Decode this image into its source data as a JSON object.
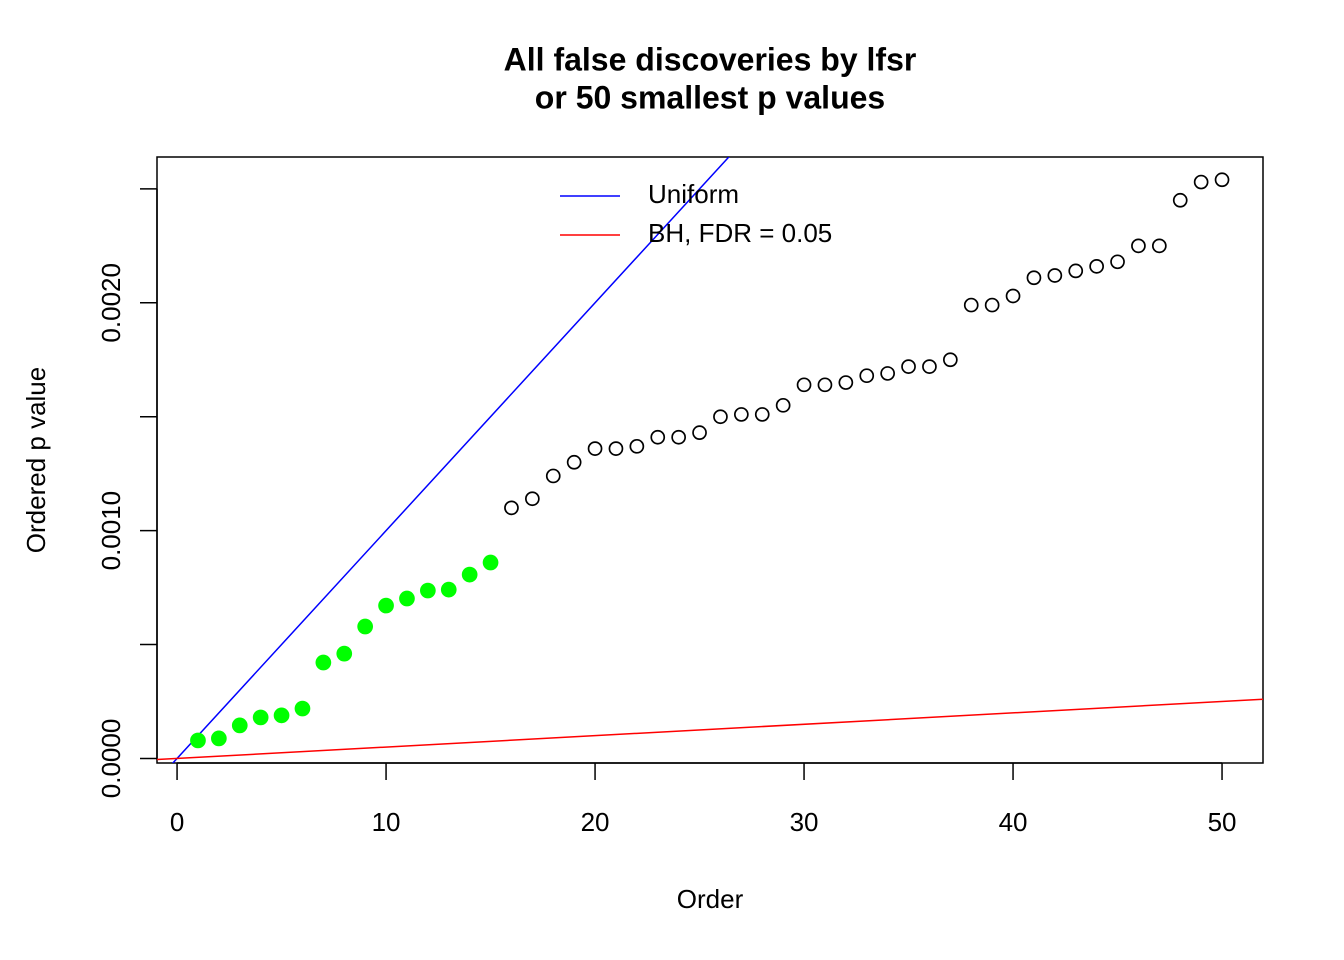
{
  "chart_data": {
    "type": "scatter",
    "title": "All false discoveries by lfsr",
    "subtitle": "or 50 smallest p values",
    "xlabel": "Order",
    "ylabel": "Ordered p value",
    "xlim": [
      -0.96,
      51.96
    ],
    "ylim": [
      -2e-05,
      0.00264
    ],
    "xticks": [
      0,
      10,
      20,
      30,
      40,
      50
    ],
    "yticks": [
      {
        "value": 0,
        "label": "0.0000"
      },
      {
        "value": 0.001,
        "label": "0.0010"
      },
      {
        "value": 0.002,
        "label": "0.0020"
      }
    ],
    "yminor_ticks": [
      0.0005,
      0.0015,
      0.0025
    ],
    "series": [
      {
        "color": "#00ff00",
        "filled": true,
        "x": [
          1,
          2,
          3,
          4,
          5,
          6,
          7,
          8,
          9,
          10,
          11,
          12,
          13,
          14,
          15
        ],
        "values": [
          7.9e-05,
          8.8e-05,
          0.000145,
          0.00018,
          0.000189,
          0.000219,
          0.000421,
          0.00046,
          0.000579,
          0.000671,
          0.000702,
          0.000737,
          0.000741,
          0.000807,
          0.00086
        ]
      },
      {
        "color": "#000000",
        "filled": false,
        "x": [
          16,
          17,
          18,
          19,
          20,
          21,
          22,
          23,
          24,
          25,
          26,
          27,
          28,
          29,
          30,
          31,
          32,
          33,
          34,
          35,
          36,
          37,
          38,
          39,
          40,
          41,
          42,
          43,
          44,
          45,
          46,
          47,
          48,
          49,
          50
        ],
        "values": [
          0.0011,
          0.00114,
          0.00124,
          0.0013,
          0.00136,
          0.00136,
          0.00137,
          0.00141,
          0.00141,
          0.00143,
          0.0015,
          0.00151,
          0.00151,
          0.00155,
          0.00164,
          0.00164,
          0.00165,
          0.00168,
          0.00169,
          0.00172,
          0.00172,
          0.00175,
          0.00199,
          0.00199,
          0.00203,
          0.00211,
          0.00212,
          0.00214,
          0.00216,
          0.00218,
          0.00225,
          0.00225,
          0.00245,
          0.00253,
          0.00254
        ]
      }
    ],
    "lines": [
      {
        "name": "Uniform",
        "color": "#0000ff",
        "slope": 0.0001,
        "intercept": 0
      },
      {
        "name": "BH, FDR = 0.05",
        "color": "#ff0000",
        "slope": 5e-06,
        "intercept": 0
      }
    ],
    "legend": "top"
  }
}
